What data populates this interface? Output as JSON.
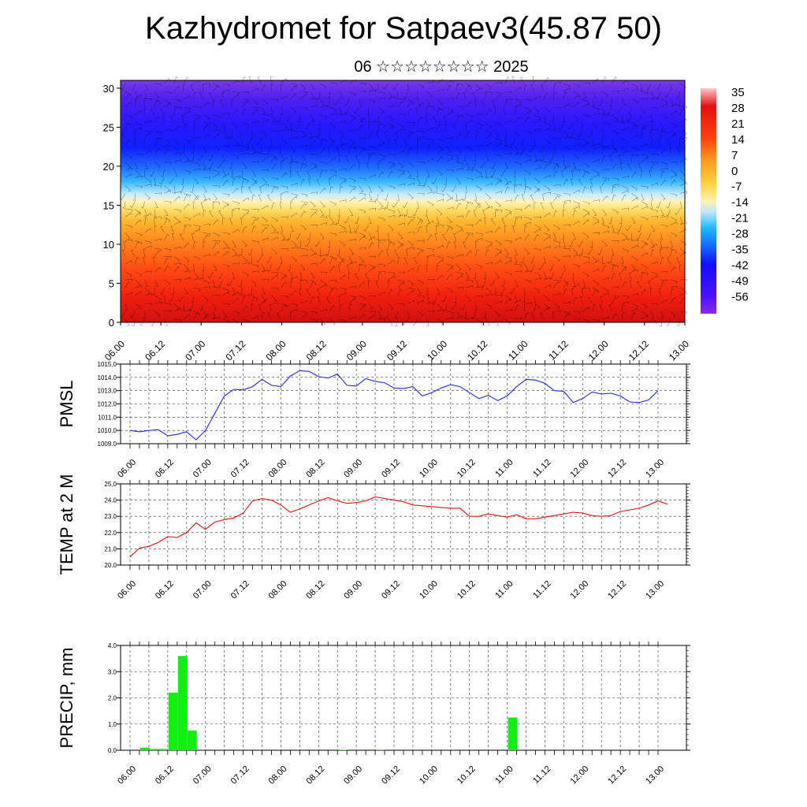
{
  "title": "Kazhydromet for Satpaev3(45.87 50)",
  "subtitle": "06 ☆☆☆☆☆☆☆☆ 2025",
  "colors": {
    "pmsl_line": "#1f2fe0",
    "temp_line": "#e01515",
    "precip_bar": "#11ee11",
    "colorbar": [
      "#8a2be2",
      "#4b10ff",
      "#1010ff",
      "#1868ff",
      "#20b8ff",
      "#bfe6ff",
      "#fff3b0",
      "#ffd040",
      "#ff9a20",
      "#ff4010",
      "#e01010",
      "#ffc8c8"
    ]
  },
  "chart_data": [
    {
      "type": "heatmap",
      "name_hint": "cross-section",
      "x_ticks": [
        "06.00",
        "06.12",
        "07.00",
        "07.12",
        "08.00",
        "08.12",
        "09.00",
        "09.12",
        "10.00",
        "10.12",
        "11.00",
        "11.12",
        "12.00",
        "12.12",
        "13.00"
      ],
      "y_ticks": [
        "0",
        "5",
        "10",
        "15",
        "20",
        "25",
        "30"
      ],
      "ylim": [
        0,
        31
      ],
      "colorbar_labels": [
        "35",
        "28",
        "21",
        "14",
        "7",
        "0",
        "-7",
        "-14",
        "-21",
        "-28",
        "-35",
        "-42",
        "-49",
        "-56"
      ],
      "value_range": [
        -60,
        38
      ]
    },
    {
      "type": "line",
      "ylabel": "PMSL",
      "x_ticks": [
        "06.00",
        "06.12",
        "07.00",
        "07.12",
        "08.00",
        "08.12",
        "09.00",
        "09.12",
        "10.00",
        "10.12",
        "11.00",
        "11.12",
        "12.00",
        "12.12",
        "13.00"
      ],
      "y_ticks": [
        "1009.0",
        "1010.0",
        "1011.0",
        "1012.0",
        "1013.0",
        "1014.0",
        "1015.0"
      ],
      "ylim": [
        1009,
        1015
      ],
      "values": [
        1010.0,
        1009.9,
        1010.0,
        1010.05,
        1009.6,
        1009.7,
        1009.9,
        1009.3,
        1010.0,
        1011.3,
        1012.6,
        1013.1,
        1013.05,
        1013.3,
        1013.85,
        1013.4,
        1013.3,
        1014.1,
        1014.5,
        1014.45,
        1014.05,
        1013.95,
        1014.25,
        1013.4,
        1013.35,
        1013.9,
        1013.7,
        1013.6,
        1013.2,
        1013.15,
        1013.3,
        1012.6,
        1012.85,
        1013.2,
        1013.45,
        1013.3,
        1012.85,
        1012.4,
        1012.65,
        1012.25,
        1012.6,
        1013.3,
        1013.85,
        1013.8,
        1013.55,
        1013.0,
        1012.95,
        1012.1,
        1012.4,
        1012.9,
        1012.75,
        1012.8,
        1012.6,
        1012.15,
        1012.1,
        1012.3,
        1013.0
      ]
    },
    {
      "type": "line",
      "ylabel": "TEMP at 2 M",
      "x_ticks": [
        "06.00",
        "06.12",
        "07.00",
        "07.12",
        "08.00",
        "08.12",
        "09.00",
        "09.12",
        "10.00",
        "10.12",
        "11.00",
        "11.12",
        "12.00",
        "12.12",
        "13.00"
      ],
      "y_ticks": [
        "20.0",
        "21.0",
        "22.0",
        "23.0",
        "24.0",
        "25.0"
      ],
      "ylim": [
        20,
        25
      ],
      "values": [
        20.5,
        21.05,
        21.15,
        21.4,
        21.75,
        21.7,
        22.0,
        22.6,
        22.2,
        22.65,
        22.8,
        22.9,
        23.2,
        23.95,
        24.1,
        24.0,
        23.7,
        23.25,
        23.45,
        23.7,
        23.95,
        24.15,
        23.95,
        23.8,
        23.85,
        23.95,
        24.2,
        24.1,
        24.0,
        23.9,
        23.7,
        23.65,
        23.6,
        23.55,
        23.5,
        23.5,
        23.0,
        23.0,
        23.15,
        23.05,
        22.95,
        23.1,
        22.85,
        22.85,
        22.95,
        23.05,
        23.15,
        23.25,
        23.2,
        23.05,
        23.0,
        23.05,
        23.3,
        23.4,
        23.5,
        23.7,
        23.95,
        23.75
      ]
    },
    {
      "type": "bar",
      "ylabel": "PRECIP, mm",
      "x_ticks": [
        "06.00",
        "06.12",
        "07.00",
        "07.12",
        "08.00",
        "08.12",
        "09.00",
        "09.12",
        "10.00",
        "10.12",
        "11.00",
        "11.12",
        "12.00",
        "12.12",
        "13.00"
      ],
      "y_ticks": [
        "0.0",
        "1.0",
        "2.0",
        "3.0",
        "4.0"
      ],
      "ylim": [
        0,
        4
      ],
      "values": [
        0,
        0.1,
        0.05,
        0.05,
        2.2,
        3.6,
        0.75,
        0,
        0,
        0,
        0,
        0,
        0,
        0,
        0,
        0,
        0,
        0,
        0,
        0,
        0,
        0,
        0.02,
        0,
        0,
        0,
        0.01,
        0,
        0,
        0,
        0,
        0,
        0,
        0,
        0,
        0,
        0,
        0,
        0,
        0,
        1.25,
        0,
        0,
        0,
        0,
        0,
        0,
        0,
        0,
        0,
        0,
        0,
        0,
        0,
        0,
        0,
        0
      ]
    }
  ]
}
